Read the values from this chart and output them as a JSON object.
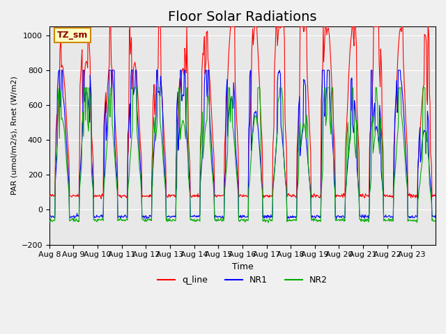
{
  "title": "Floor Solar Radiations",
  "xlabel": "Time",
  "ylabel": "PAR (umol/m2/s), Rnet (W/m2)",
  "ylim": [
    -200,
    1050
  ],
  "annotation_text": "TZ_sm",
  "annotation_color": "#8B0000",
  "annotation_bg": "#FFFFC0",
  "annotation_border": "#CC8800",
  "background_color": "#E8E8E8",
  "line_colors": {
    "q_line": "#FF0000",
    "NR1": "#0000FF",
    "NR2": "#00AA00"
  },
  "legend_labels": [
    "q_line",
    "NR1",
    "NR2"
  ],
  "x_tick_labels": [
    "Aug 8",
    "Aug 9",
    "Aug 10",
    "Aug 11",
    "Aug 12",
    "Aug 13",
    "Aug 14",
    "Aug 15",
    "Aug 16",
    "Aug 17",
    "Aug 18",
    "Aug 19",
    "Aug 20",
    "Aug 21",
    "Aug 22",
    "Aug 23"
  ],
  "n_days": 16,
  "start_day": 8,
  "samples_per_day": 48,
  "seed": 42,
  "q_line_base": 80,
  "q_line_peak_scale": [
    750,
    770,
    780,
    760,
    750,
    730,
    800,
    970,
    990,
    980,
    950,
    960,
    940,
    950,
    960,
    650
  ],
  "NR1_peak_scale": [
    710,
    720,
    720,
    730,
    720,
    700,
    690,
    680,
    610,
    550,
    510,
    770,
    520,
    510,
    790,
    500
  ],
  "NR2_peak_scale": [
    580,
    590,
    600,
    600,
    590,
    570,
    570,
    570,
    600,
    580,
    550,
    620,
    520,
    510,
    620,
    400
  ],
  "NR1_base": -40,
  "NR2_base": -60,
  "grid_color": "#FFFFFF",
  "title_fontsize": 14,
  "yticks": [
    -200,
    0,
    200,
    400,
    600,
    800,
    1000
  ]
}
